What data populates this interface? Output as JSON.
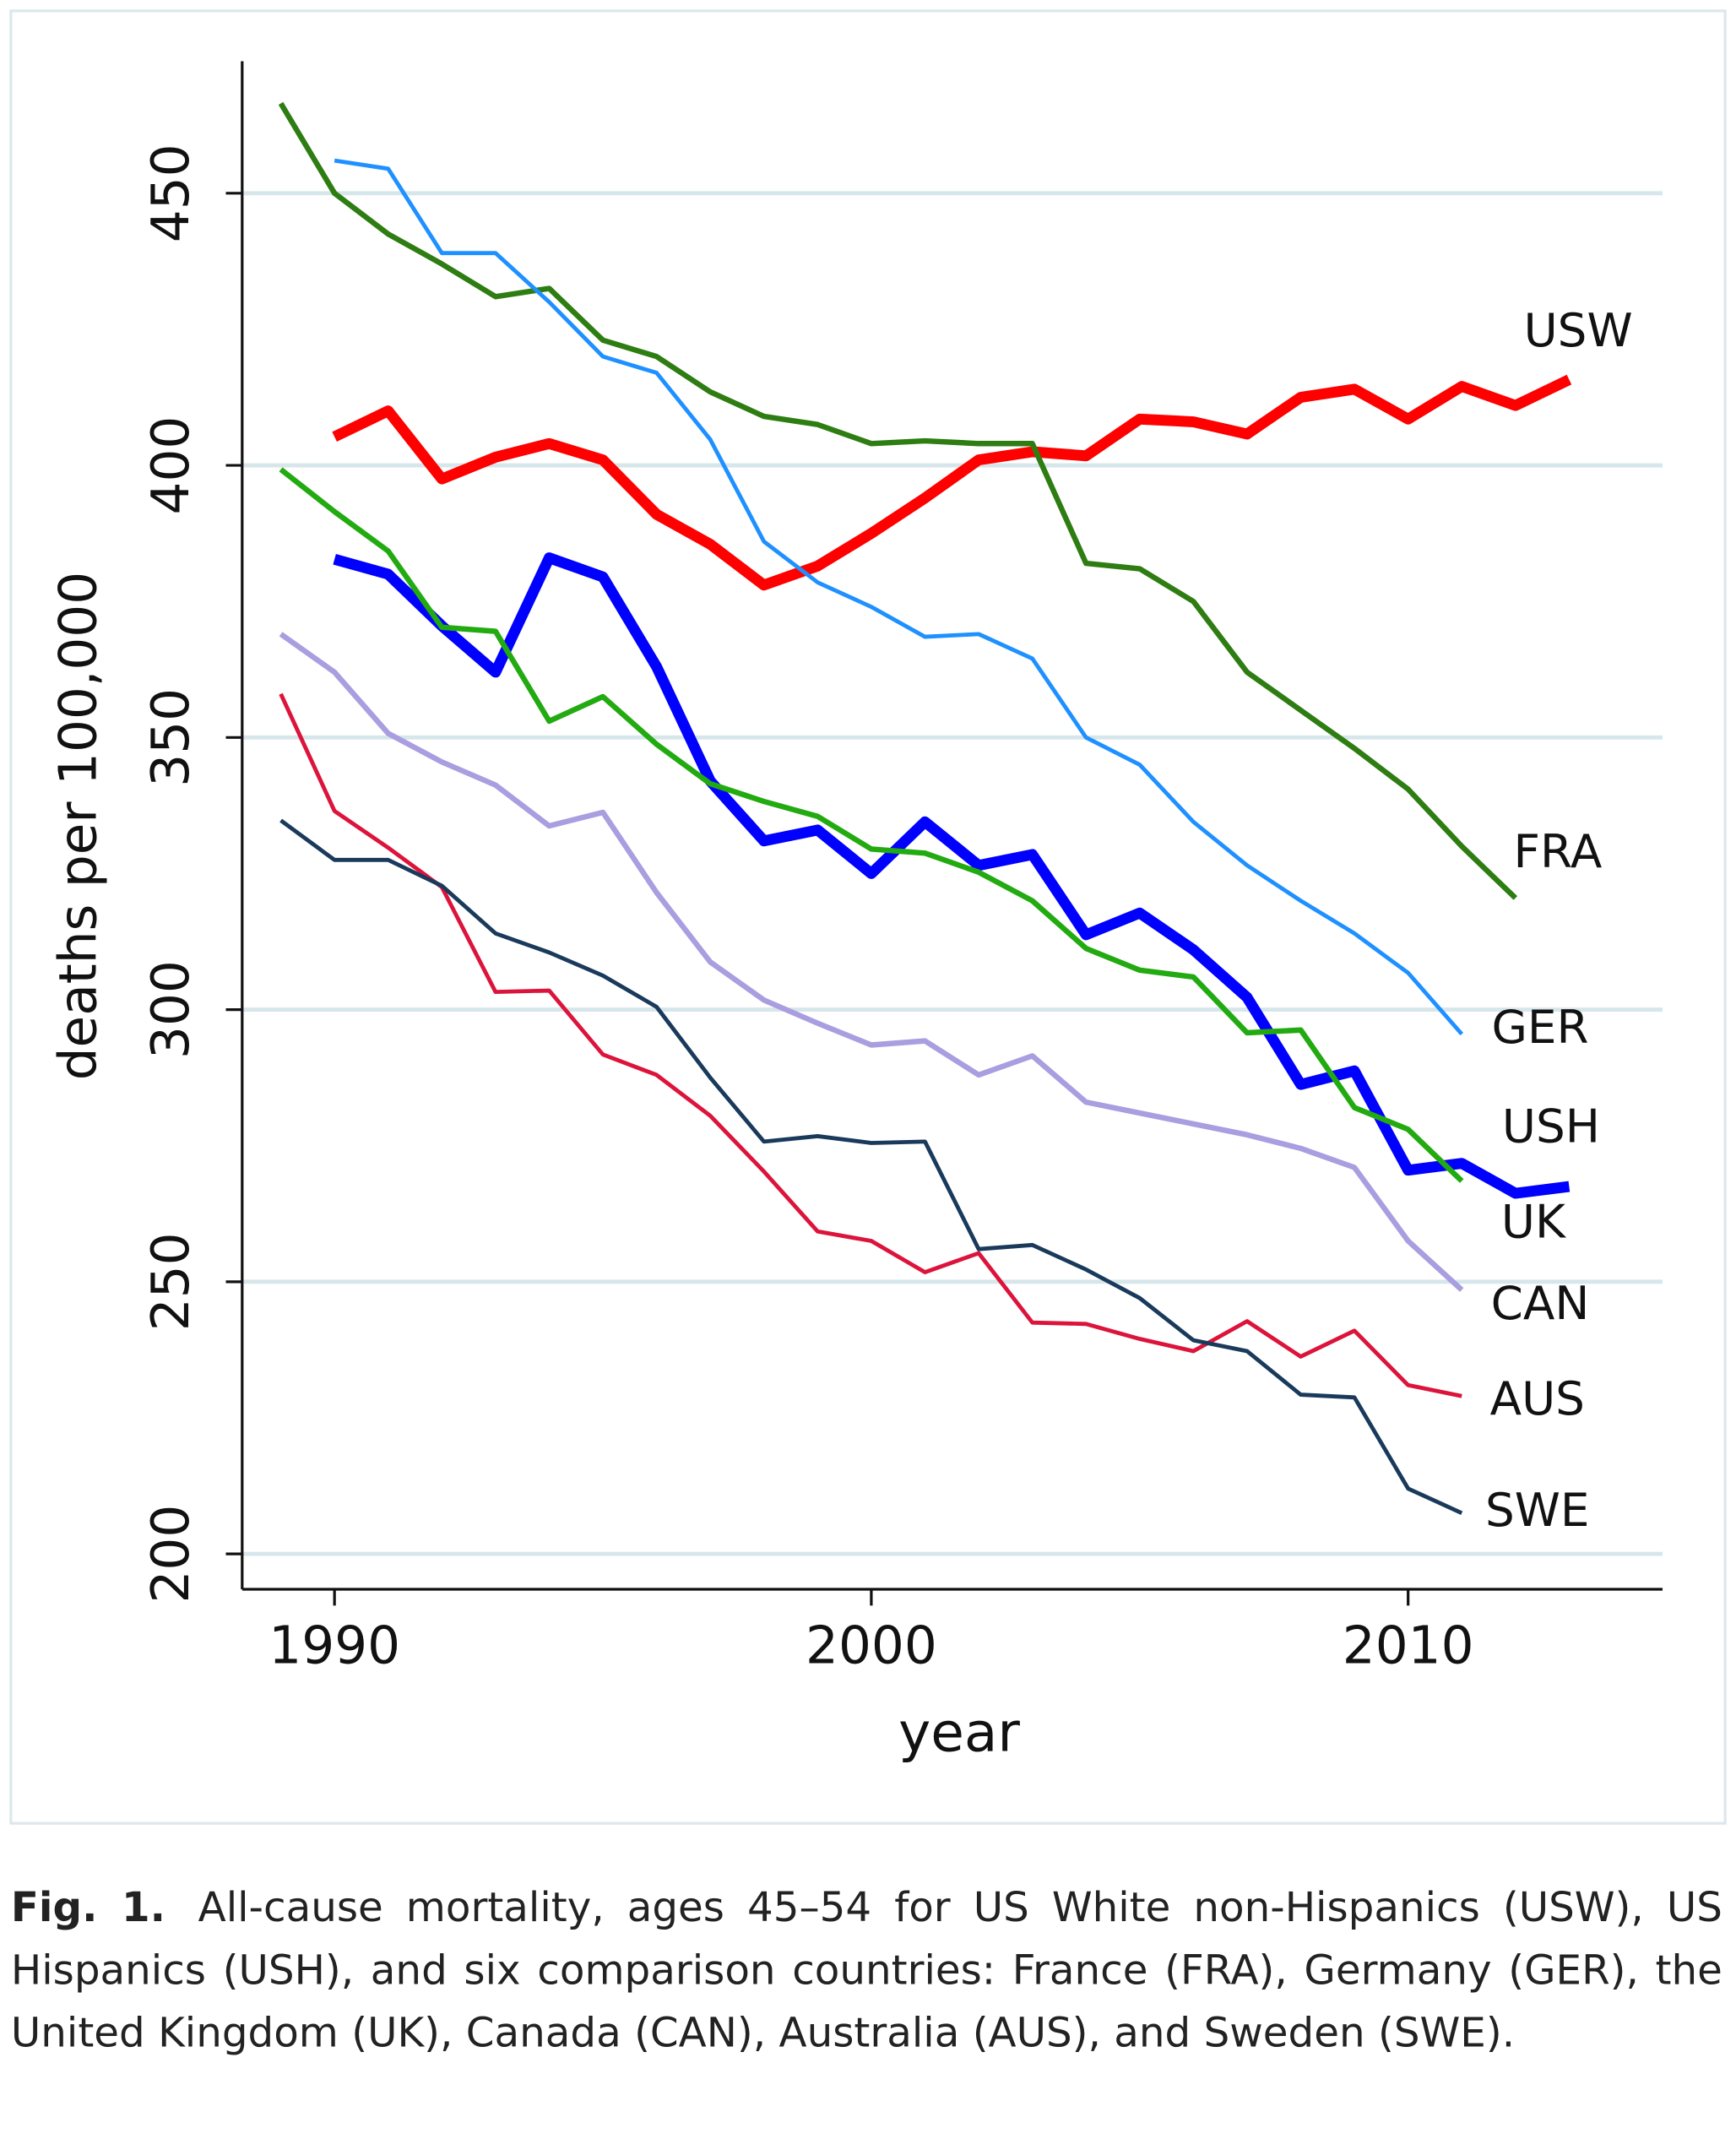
{
  "chart_data": {
    "type": "line",
    "xlabel": "year",
    "ylabel": "deaths per 100,000",
    "x": [
      1989,
      1990,
      1991,
      1992,
      1993,
      1994,
      1995,
      1996,
      1997,
      1998,
      1999,
      2000,
      2001,
      2002,
      2003,
      2004,
      2005,
      2006,
      2007,
      2008,
      2009,
      2010,
      2011,
      2012,
      2013
    ],
    "xlim": [
      1988.28,
      2014.74
    ],
    "xticks": [
      1990,
      2000,
      2010
    ],
    "ylim": [
      193.5,
      474.25
    ],
    "yticks": [
      200,
      250,
      300,
      350,
      400,
      450
    ],
    "grid": true,
    "series": [
      {
        "name": "USW",
        "color": "#ff0000",
        "values": [
          null,
          405.25,
          410,
          397.5,
          401.5,
          404,
          401,
          391,
          385.5,
          378,
          381.5,
          387.5,
          394,
          401,
          402.5,
          401.75,
          408.5,
          408,
          405.75,
          412.5,
          414,
          408.5,
          414.5,
          411,
          415.75
        ]
      },
      {
        "name": "FRA",
        "color": "#2e7d12",
        "values": [
          466.5,
          450,
          442.5,
          437,
          431,
          432.5,
          423,
          420,
          413.5,
          409,
          407.5,
          404,
          404.5,
          404,
          404,
          382,
          381,
          375,
          362,
          355,
          348,
          340.5,
          330,
          320.5,
          null
        ]
      },
      {
        "name": "GER",
        "color": "#1e90ff",
        "values": [
          null,
          456,
          454.5,
          439,
          439,
          430,
          420,
          417,
          404.75,
          386,
          378.5,
          374,
          368.5,
          369,
          364.5,
          350,
          345,
          334.5,
          326.5,
          320,
          314,
          306.75,
          295.5,
          null,
          null
        ]
      },
      {
        "name": "USH",
        "color": "#0000ff",
        "values": [
          null,
          382.75,
          380,
          370.5,
          362,
          383,
          379.5,
          363,
          342,
          331,
          333,
          325,
          334.5,
          326.5,
          328.5,
          313.75,
          317.75,
          311,
          302.25,
          286.25,
          288.75,
          270.5,
          271.75,
          266.25,
          267.5
        ]
      },
      {
        "name": "UK",
        "color": "#22aa11",
        "values": [
          399.25,
          391.5,
          384.25,
          370.25,
          369.5,
          353,
          357.5,
          348.75,
          341.5,
          338.25,
          335.5,
          329.5,
          328.75,
          325.25,
          320,
          311.25,
          307.25,
          306,
          295.75,
          296.25,
          282,
          278,
          268.5,
          null,
          null
        ]
      },
      {
        "name": "CAN",
        "color": "#a89ee0",
        "values": [
          369,
          362,
          350.75,
          345.5,
          341.25,
          333.75,
          336.25,
          321.5,
          308.75,
          301.75,
          297.5,
          293.5,
          294.25,
          288,
          291.5,
          283,
          281,
          279,
          277,
          274.5,
          271,
          257.5,
          248.5,
          null,
          null
        ]
      },
      {
        "name": "AUS",
        "color": "#dc143c",
        "values": [
          358,
          336.5,
          329.75,
          322.5,
          303.25,
          303.5,
          291.75,
          288,
          280.5,
          270.25,
          259.25,
          257.5,
          251.75,
          255.25,
          242.5,
          242.25,
          239.5,
          237.25,
          242.75,
          236.25,
          241,
          231,
          229,
          null,
          null
        ]
      },
      {
        "name": "SWE",
        "color": "#1a3a5c",
        "values": [
          334.75,
          327.5,
          327.5,
          322.75,
          314,
          310.5,
          306.25,
          300.5,
          287.5,
          275.75,
          276.75,
          275.5,
          275.75,
          256,
          256.75,
          252.25,
          247,
          239.25,
          237.25,
          229.25,
          228.75,
          212,
          207.5,
          null,
          null
        ]
      }
    ],
    "caption_label": "Fig. 1.",
    "caption": "All-cause mortality, ages 45–54 for US White non-Hispanics (USW), US Hispanics (USH), and six comparison countries: France (FRA), Germany (GER), the United Kingdom (UK), Canada (CAN), Australia (AUS), and Sweden (SWE)."
  }
}
